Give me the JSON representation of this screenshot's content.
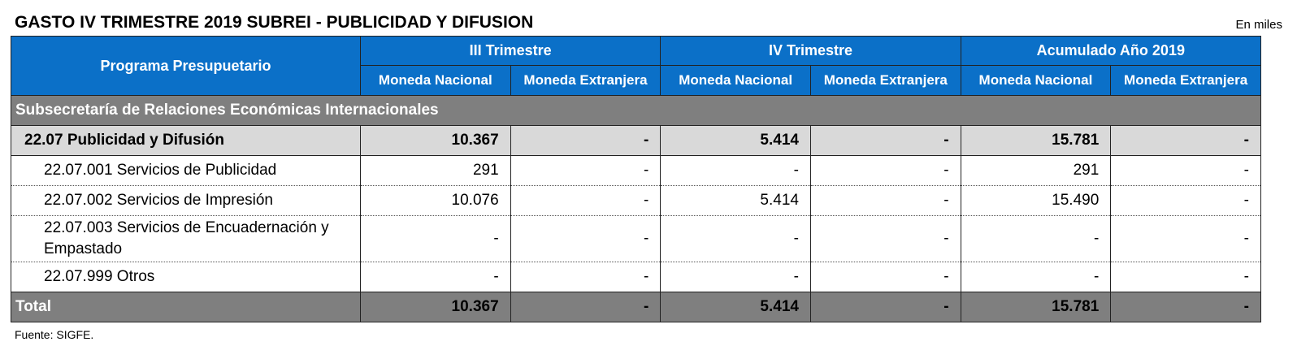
{
  "title": "GASTO IV TRIMESTRE 2019 SUBREI - PUBLICIDAD Y DIFUSION",
  "unit_note": "En miles",
  "header": {
    "program_label": "Programa Presupuetario",
    "groups": [
      "III Trimestre",
      "IV Trimestre",
      "Acumulado Año 2019"
    ],
    "subcols": [
      "Moneda Nacional",
      "Moneda Extranjera",
      "Moneda Nacional",
      "Moneda Extranjera",
      "Moneda Nacional",
      "Moneda Extranjera"
    ]
  },
  "section": "Subsecretaría de Relaciones Económicas Internacionales",
  "subtotal": {
    "label": "22.07 Publicidad y Difusión",
    "values": [
      "10.367",
      "-",
      "5.414",
      "-",
      "15.781",
      "-"
    ]
  },
  "items": [
    {
      "label": "22.07.001 Servicios de Publicidad",
      "values": [
        "291",
        "-",
        "-",
        "-",
        "291",
        "-"
      ]
    },
    {
      "label": "22.07.002 Servicios de Impresión",
      "values": [
        "10.076",
        "-",
        "5.414",
        "-",
        "15.490",
        "-"
      ]
    },
    {
      "label": "22.07.003 Servicios de Encuadernación y Empastado",
      "values": [
        "-",
        "-",
        "-",
        "-",
        "-",
        "-"
      ]
    },
    {
      "label": "22.07.999 Otros",
      "values": [
        "-",
        "-",
        "-",
        "-",
        "-",
        "-"
      ]
    }
  ],
  "total": {
    "label": "Total",
    "values": [
      "10.367",
      "-",
      "5.414",
      "-",
      "15.781",
      "-"
    ]
  },
  "source": "Fuente: SIGFE."
}
